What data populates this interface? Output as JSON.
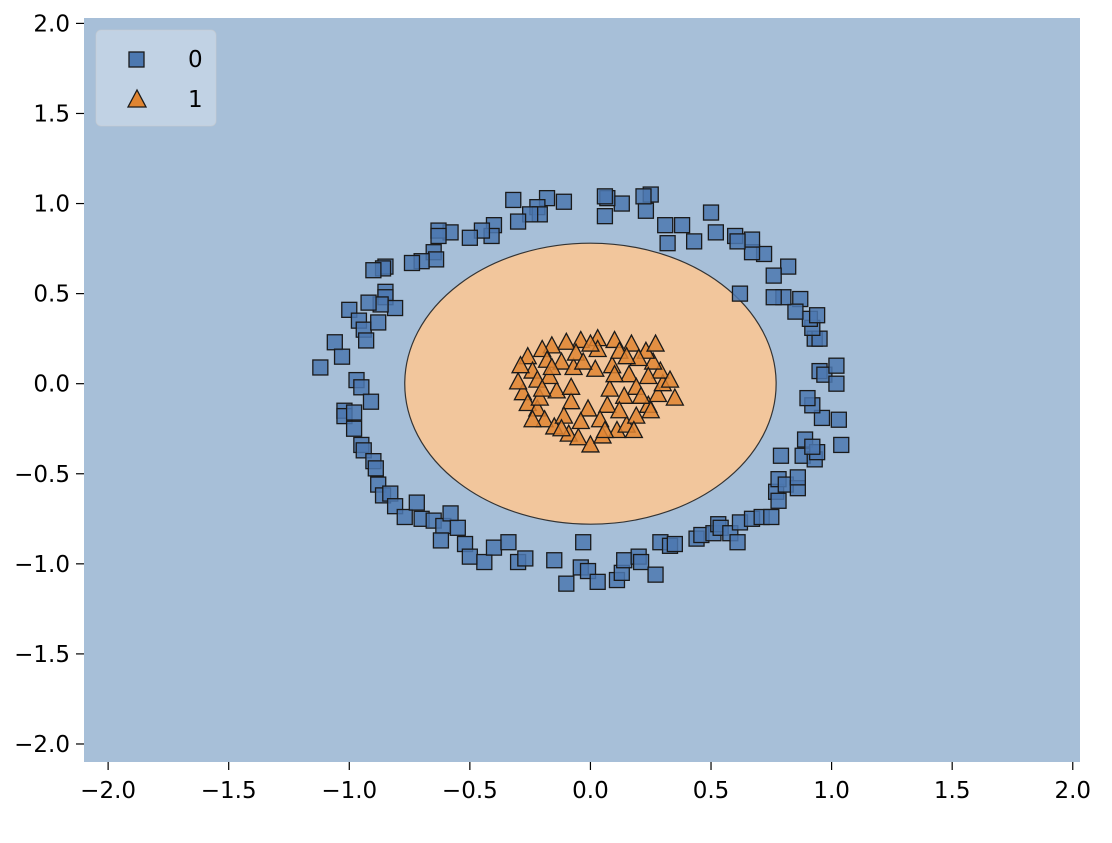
{
  "chart_data": {
    "type": "scatter",
    "title": "",
    "xlabel": "",
    "ylabel": "",
    "xlim": [
      -2.1,
      2.03
    ],
    "ylim": [
      -2.1,
      2.03
    ],
    "xticks": [
      -2.0,
      -1.5,
      -1.0,
      -0.5,
      0.0,
      0.5,
      1.0,
      1.5,
      2.0
    ],
    "yticks": [
      -2.0,
      -1.5,
      -1.0,
      -0.5,
      0.0,
      0.5,
      1.0,
      1.5,
      2.0
    ],
    "xtick_labels": [
      "−2.0",
      "−1.5",
      "−1.0",
      "−0.5",
      "0.0",
      "0.5",
      "1.0",
      "1.5",
      "2.0"
    ],
    "ytick_labels": [
      "−2.0",
      "−1.5",
      "−1.0",
      "−0.5",
      "0.0",
      "0.5",
      "1.0",
      "1.5",
      "2.0"
    ],
    "grid": false,
    "legend_position": "top-left",
    "decision_region": {
      "shape": "ellipse",
      "center": [
        0.0,
        0.0
      ],
      "radius_x": 0.77,
      "radius_y": 0.78,
      "inside_class": "1",
      "outside_class": "0",
      "inside_color": "#f2c69c",
      "outside_color": "#a7bfd8"
    },
    "series": [
      {
        "name": "0",
        "marker": "square",
        "color": "#4c78b0",
        "points": [
          [
            -1.12,
            0.09
          ],
          [
            -1.06,
            0.23
          ],
          [
            -1.03,
            0.15
          ],
          [
            -1.0,
            0.41
          ],
          [
            -0.97,
            0.02
          ],
          [
            -0.95,
            -0.02
          ],
          [
            -1.02,
            -0.15
          ],
          [
            -1.02,
            -0.18
          ],
          [
            -0.98,
            -0.16
          ],
          [
            -0.98,
            -0.25
          ],
          [
            -0.95,
            -0.34
          ],
          [
            -0.94,
            -0.37
          ],
          [
            -0.91,
            -0.1
          ],
          [
            -0.9,
            -0.43
          ],
          [
            -0.89,
            -0.47
          ],
          [
            -0.88,
            -0.56
          ],
          [
            -0.86,
            -0.62
          ],
          [
            -0.83,
            -0.61
          ],
          [
            -0.81,
            -0.68
          ],
          [
            -0.77,
            -0.74
          ],
          [
            -0.72,
            -0.66
          ],
          [
            -0.7,
            -0.75
          ],
          [
            -0.65,
            -0.76
          ],
          [
            -0.61,
            -0.79
          ],
          [
            -0.62,
            -0.87
          ],
          [
            -0.58,
            -0.72
          ],
          [
            -0.55,
            -0.8
          ],
          [
            -0.52,
            -0.89
          ],
          [
            -0.5,
            -0.96
          ],
          [
            -0.44,
            -0.99
          ],
          [
            -0.4,
            -0.91
          ],
          [
            -0.34,
            -0.88
          ],
          [
            -0.3,
            -0.99
          ],
          [
            -0.27,
            -0.97
          ],
          [
            -0.15,
            -0.98
          ],
          [
            -0.04,
            -1.02
          ],
          [
            -0.03,
            -0.88
          ],
          [
            -0.01,
            -1.04
          ],
          [
            -0.1,
            -1.11
          ],
          [
            0.03,
            -1.1
          ],
          [
            0.11,
            -1.09
          ],
          [
            0.13,
            -1.05
          ],
          [
            0.14,
            -0.98
          ],
          [
            0.2,
            -0.96
          ],
          [
            0.21,
            -0.99
          ],
          [
            0.27,
            -1.06
          ],
          [
            0.29,
            -0.88
          ],
          [
            0.33,
            -0.9
          ],
          [
            0.35,
            -0.89
          ],
          [
            0.44,
            -0.86
          ],
          [
            0.46,
            -0.84
          ],
          [
            0.51,
            -0.83
          ],
          [
            0.53,
            -0.78
          ],
          [
            0.54,
            -0.8
          ],
          [
            0.58,
            -0.83
          ],
          [
            0.61,
            -0.88
          ],
          [
            0.62,
            -0.77
          ],
          [
            0.67,
            -0.75
          ],
          [
            0.71,
            -0.74
          ],
          [
            0.75,
            -0.74
          ],
          [
            0.77,
            -0.6
          ],
          [
            0.78,
            -0.65
          ],
          [
            0.78,
            -0.53
          ],
          [
            0.79,
            -0.4
          ],
          [
            0.81,
            -0.56
          ],
          [
            0.86,
            -0.58
          ],
          [
            0.86,
            -0.52
          ],
          [
            0.88,
            -0.4
          ],
          [
            0.89,
            -0.31
          ],
          [
            0.93,
            -0.42
          ],
          [
            0.94,
            -0.38
          ],
          [
            0.92,
            -0.35
          ],
          [
            1.04,
            -0.34
          ],
          [
            0.96,
            -0.19
          ],
          [
            0.92,
            -0.12
          ],
          [
            1.03,
            -0.2
          ],
          [
            0.9,
            -0.08
          ],
          [
            0.95,
            0.07
          ],
          [
            0.97,
            0.05
          ],
          [
            1.02,
            0.1
          ],
          [
            1.02,
            0.0
          ],
          [
            0.93,
            0.25
          ],
          [
            0.95,
            0.25
          ],
          [
            0.92,
            0.31
          ],
          [
            0.91,
            0.36
          ],
          [
            0.94,
            0.38
          ],
          [
            0.87,
            0.47
          ],
          [
            0.85,
            0.4
          ],
          [
            0.8,
            0.48
          ],
          [
            0.76,
            0.48
          ],
          [
            0.82,
            0.65
          ],
          [
            0.76,
            0.6
          ],
          [
            0.72,
            0.72
          ],
          [
            0.67,
            0.73
          ],
          [
            0.67,
            0.8
          ],
          [
            0.6,
            0.82
          ],
          [
            0.61,
            0.79
          ],
          [
            0.62,
            0.5
          ],
          [
            0.52,
            0.84
          ],
          [
            0.5,
            0.95
          ],
          [
            0.43,
            0.79
          ],
          [
            0.38,
            0.88
          ],
          [
            0.31,
            0.88
          ],
          [
            0.32,
            0.78
          ],
          [
            0.25,
            1.05
          ],
          [
            0.23,
            0.96
          ],
          [
            0.22,
            1.04
          ],
          [
            0.13,
            1.0
          ],
          [
            0.07,
            1.03
          ],
          [
            0.06,
            1.04
          ],
          [
            0.06,
            0.93
          ],
          [
            -0.11,
            1.01
          ],
          [
            -0.18,
            1.03
          ],
          [
            -0.22,
            0.98
          ],
          [
            -0.21,
            0.94
          ],
          [
            -0.25,
            0.94
          ],
          [
            -0.32,
            1.02
          ],
          [
            -0.3,
            0.9
          ],
          [
            -0.4,
            0.88
          ],
          [
            -0.41,
            0.82
          ],
          [
            -0.45,
            0.85
          ],
          [
            -0.5,
            0.81
          ],
          [
            -0.58,
            0.84
          ],
          [
            -0.63,
            0.85
          ],
          [
            -0.63,
            0.82
          ],
          [
            -0.65,
            0.73
          ],
          [
            -0.64,
            0.69
          ],
          [
            -0.7,
            0.68
          ],
          [
            -0.74,
            0.67
          ],
          [
            -0.85,
            0.65
          ],
          [
            -0.86,
            0.64
          ],
          [
            -0.9,
            0.63
          ],
          [
            -0.85,
            0.51
          ],
          [
            -0.85,
            0.48
          ],
          [
            -0.81,
            0.42
          ],
          [
            -0.87,
            0.44
          ],
          [
            -0.92,
            0.45
          ],
          [
            -0.96,
            0.35
          ],
          [
            -0.94,
            0.3
          ],
          [
            -0.93,
            0.24
          ],
          [
            -0.88,
            0.34
          ]
        ]
      },
      {
        "name": "1",
        "marker": "triangle",
        "color": "#e08532",
        "points": [
          [
            -0.26,
            0.15
          ],
          [
            -0.24,
            0.07
          ],
          [
            -0.22,
            0.02
          ],
          [
            -0.28,
            -0.05
          ],
          [
            -0.26,
            -0.11
          ],
          [
            -0.22,
            -0.14
          ],
          [
            -0.19,
            -0.2
          ],
          [
            -0.15,
            -0.24
          ],
          [
            -0.09,
            -0.28
          ],
          [
            -0.05,
            -0.3
          ],
          [
            0.0,
            -0.34
          ],
          [
            0.05,
            -0.29
          ],
          [
            0.11,
            -0.26
          ],
          [
            0.15,
            -0.23
          ],
          [
            0.19,
            -0.18
          ],
          [
            0.24,
            -0.12
          ],
          [
            0.28,
            -0.06
          ],
          [
            0.3,
            0.0
          ],
          [
            0.29,
            0.07
          ],
          [
            0.26,
            0.12
          ],
          [
            0.23,
            0.18
          ],
          [
            0.17,
            0.22
          ],
          [
            0.1,
            0.24
          ],
          [
            0.03,
            0.25
          ],
          [
            -0.04,
            0.24
          ],
          [
            -0.1,
            0.23
          ],
          [
            -0.16,
            0.21
          ],
          [
            -0.2,
            0.19
          ],
          [
            -0.12,
            0.12
          ],
          [
            -0.07,
            0.09
          ],
          [
            0.02,
            0.08
          ],
          [
            0.09,
            0.1
          ],
          [
            0.16,
            0.05
          ],
          [
            0.19,
            -0.02
          ],
          [
            0.14,
            -0.07
          ],
          [
            0.07,
            -0.12
          ],
          [
            -0.01,
            -0.14
          ],
          [
            -0.08,
            -0.1
          ],
          [
            -0.14,
            -0.04
          ],
          [
            -0.17,
            0.04
          ],
          [
            -0.11,
            -0.18
          ],
          [
            -0.04,
            -0.21
          ],
          [
            0.04,
            -0.2
          ],
          [
            0.12,
            -0.15
          ],
          [
            0.21,
            -0.07
          ],
          [
            0.24,
            0.04
          ],
          [
            0.2,
            0.14
          ],
          [
            0.12,
            0.18
          ],
          [
            0.03,
            0.19
          ],
          [
            -0.06,
            0.17
          ],
          [
            -0.18,
            0.13
          ],
          [
            -0.21,
            -0.08
          ],
          [
            -0.08,
            -0.02
          ],
          [
            -0.03,
            0.12
          ],
          [
            0.08,
            -0.03
          ],
          [
            0.33,
            0.02
          ],
          [
            0.35,
            -0.08
          ],
          [
            0.27,
            0.22
          ],
          [
            -0.3,
            0.01
          ],
          [
            -0.29,
            0.1
          ],
          [
            -0.24,
            -0.2
          ],
          [
            -0.12,
            -0.25
          ],
          [
            0.06,
            -0.26
          ],
          [
            0.18,
            -0.26
          ],
          [
            0.0,
            0.22
          ],
          [
            -0.16,
            0.09
          ],
          [
            0.15,
            0.15
          ],
          [
            0.25,
            -0.15
          ],
          [
            -0.2,
            -0.03
          ],
          [
            0.1,
            0.05
          ]
        ]
      }
    ]
  }
}
